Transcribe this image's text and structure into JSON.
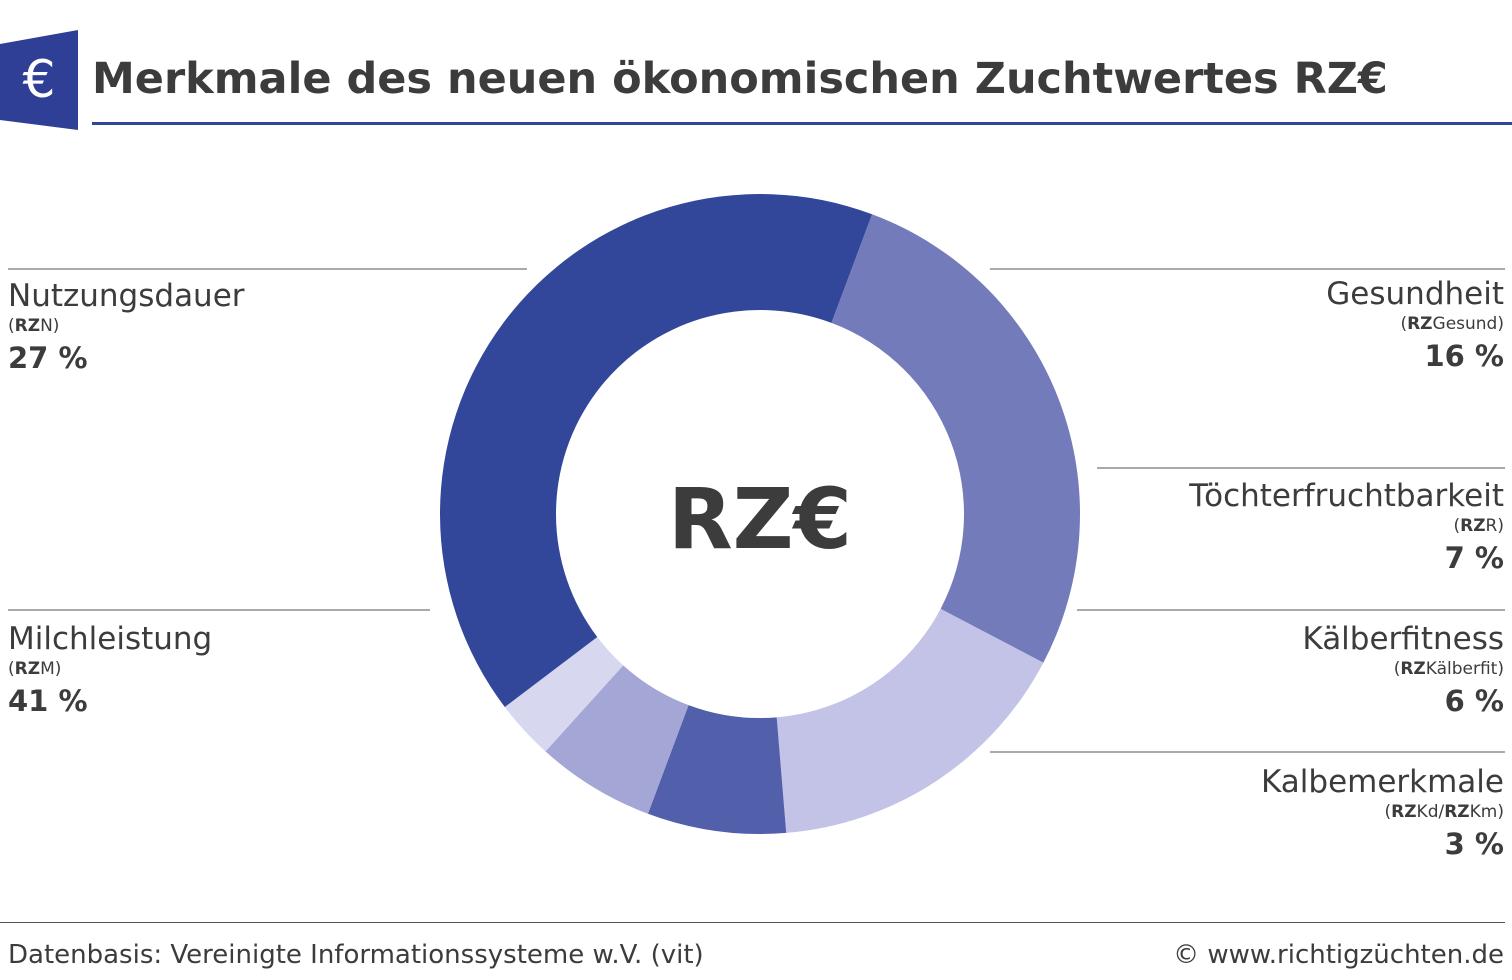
{
  "header": {
    "title": "Merkmale des neuen ökonomischen Zuchtwertes RZ€",
    "logo_symbol": "€",
    "logo_color": "#2f3f96"
  },
  "chart_data": {
    "type": "pie",
    "center_label": "RZ€",
    "slices": [
      {
        "label": "Nutzungsdauer",
        "code_bold": "RZ",
        "code_rest": "N",
        "value": 27,
        "value_text": "27 %",
        "color": "#737bbb"
      },
      {
        "label": "Gesundheit",
        "code_bold": "RZ",
        "code_rest": "Gesund",
        "value": 16,
        "value_text": "16 %",
        "color": "#c2c3e6"
      },
      {
        "label": "Töchterfruchtbarkeit",
        "code_bold": "RZ",
        "code_rest": "R",
        "value": 7,
        "value_text": "7 %",
        "color": "#525faa"
      },
      {
        "label": "Kälberfitness",
        "code_bold": "RZ",
        "code_rest": "Kälberfit",
        "value": 6,
        "value_text": "6 %",
        "color": "#a4a6d6"
      },
      {
        "label": "Kalbemerkmale",
        "code_bold": "RZ",
        "code_rest": "Kd/",
        "code_bold2": "RZ",
        "code_rest2": "Km",
        "value": 3,
        "value_text": "3 %",
        "color": "#d7d8f0"
      },
      {
        "label": "Milchleistung",
        "code_bold": "RZ",
        "code_rest": "M",
        "value": 41,
        "value_text": "41 %",
        "color": "#33479a"
      }
    ]
  },
  "footer": {
    "source": "Datenbasis: Vereinigte Informationssysteme w.V. (vit)",
    "credit": "© www.richtigzüchten.de"
  }
}
